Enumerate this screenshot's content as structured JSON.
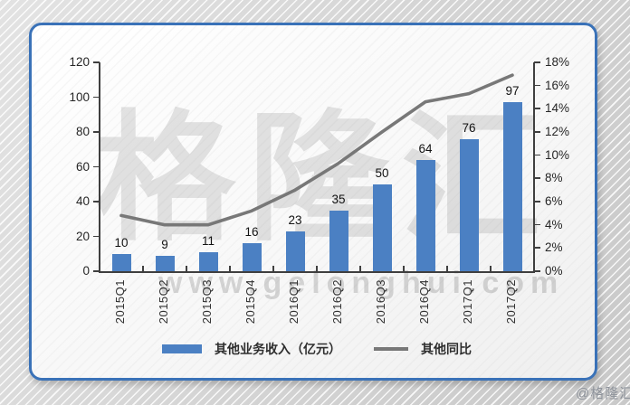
{
  "watermark": {
    "big": "格隆汇",
    "url": "www.gelonghui.com",
    "credit": "@格隆汇"
  },
  "chart_data": {
    "type": "bar+line",
    "categories": [
      "2015Q1",
      "2015Q2",
      "2015Q3",
      "2015Q4",
      "2016Q1",
      "2016Q2",
      "2016Q3",
      "2016Q4",
      "2017Q1",
      "2017Q2"
    ],
    "series": [
      {
        "name": "其他业务收入（亿元）",
        "type": "bar",
        "axis": "left",
        "values": [
          10,
          9,
          11,
          16,
          23,
          35,
          50,
          64,
          76,
          97
        ],
        "color": "#4b80c3"
      },
      {
        "name": "其他同比",
        "type": "line",
        "axis": "right",
        "unit": "%",
        "values": [
          4.8,
          4.0,
          4.0,
          5.2,
          7.0,
          9.3,
          12.0,
          14.6,
          15.3,
          16.9
        ],
        "color": "#787878"
      }
    ],
    "left_axis": {
      "min": 0,
      "max": 120,
      "step": 20,
      "tick_labels": [
        "0",
        "20",
        "40",
        "60",
        "80",
        "100",
        "120"
      ]
    },
    "right_axis": {
      "min": 0,
      "max": 18,
      "step": 2,
      "tick_labels": [
        "0%",
        "2%",
        "4%",
        "6%",
        "8%",
        "10%",
        "12%",
        "14%",
        "16%",
        "18%"
      ]
    },
    "legend": [
      "其他业务收入（亿元）",
      "其他同比"
    ],
    "legend_position": "bottom",
    "grid": false,
    "data_labels": true,
    "colors": {
      "bar": "#4b80c3",
      "line": "#787878",
      "axis": "#3f3f3f",
      "border": "#3a72b8"
    }
  }
}
